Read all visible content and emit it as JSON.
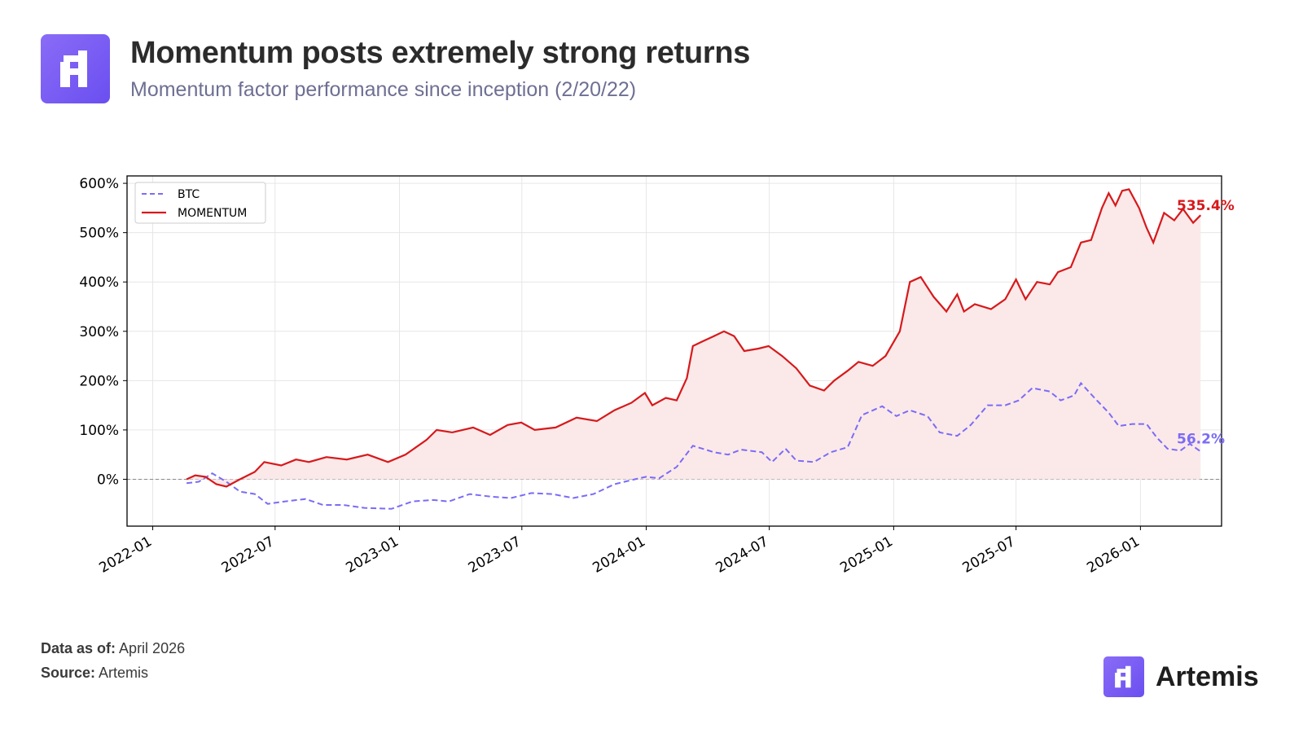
{
  "header": {
    "title": "Momentum posts extremely strong returns",
    "subtitle": "Momentum factor performance since inception (2/20/22)"
  },
  "footer": {
    "data_as_of_label": "Data as of:",
    "data_as_of_value": "April 2026",
    "source_label": "Source:",
    "source_value": "Artemis",
    "brand": "Artemis"
  },
  "colors": {
    "momentum": "#d7191c",
    "btc": "#7b6cf6",
    "fill": "#fbe9e9",
    "brand": "#7057f2"
  },
  "chart_data": {
    "type": "line",
    "xlabel": "",
    "ylabel": "",
    "ylim": [
      -95,
      615
    ],
    "xlim": [
      "2021-11-24",
      "2026-05-01"
    ],
    "y_ticks": [
      0,
      100,
      200,
      300,
      400,
      500,
      600
    ],
    "y_tick_labels": [
      "0%",
      "100%",
      "200%",
      "300%",
      "400%",
      "500%",
      "600%"
    ],
    "x_ticks": [
      "2022-01-01",
      "2022-07-01",
      "2023-01-01",
      "2023-07-01",
      "2024-01-01",
      "2024-07-01",
      "2025-01-01",
      "2025-07-01",
      "2026-01-01"
    ],
    "x_tick_labels": [
      "2022-01",
      "2022-07",
      "2023-01",
      "2023-07",
      "2024-01",
      "2024-07",
      "2025-01",
      "2025-07",
      "2026-01"
    ],
    "grid": true,
    "legend_position": "top-left",
    "series": [
      {
        "name": "BTC",
        "style": "dashed",
        "end_label": "56.2%",
        "points": [
          [
            "2022-02-20",
            -8
          ],
          [
            "2022-03-10",
            -5
          ],
          [
            "2022-03-30",
            12
          ],
          [
            "2022-04-20",
            -5
          ],
          [
            "2022-05-10",
            -25
          ],
          [
            "2022-06-01",
            -30
          ],
          [
            "2022-06-20",
            -50
          ],
          [
            "2022-07-15",
            -45
          ],
          [
            "2022-08-15",
            -40
          ],
          [
            "2022-09-10",
            -52
          ],
          [
            "2022-10-10",
            -52
          ],
          [
            "2022-11-10",
            -58
          ],
          [
            "2022-12-20",
            -60
          ],
          [
            "2023-01-20",
            -45
          ],
          [
            "2023-02-20",
            -42
          ],
          [
            "2023-03-15",
            -45
          ],
          [
            "2023-04-15",
            -30
          ],
          [
            "2023-05-15",
            -35
          ],
          [
            "2023-06-15",
            -38
          ],
          [
            "2023-07-15",
            -28
          ],
          [
            "2023-08-15",
            -30
          ],
          [
            "2023-09-15",
            -38
          ],
          [
            "2023-10-15",
            -30
          ],
          [
            "2023-11-15",
            -10
          ],
          [
            "2023-12-15",
            0
          ],
          [
            "2024-01-01",
            5
          ],
          [
            "2024-01-20",
            2
          ],
          [
            "2024-02-15",
            25
          ],
          [
            "2024-03-10",
            68
          ],
          [
            "2024-04-10",
            55
          ],
          [
            "2024-05-01",
            50
          ],
          [
            "2024-05-20",
            60
          ],
          [
            "2024-06-20",
            55
          ],
          [
            "2024-07-05",
            35
          ],
          [
            "2024-07-25",
            62
          ],
          [
            "2024-08-10",
            38
          ],
          [
            "2024-09-05",
            35
          ],
          [
            "2024-09-30",
            55
          ],
          [
            "2024-10-25",
            65
          ],
          [
            "2024-11-15",
            130
          ],
          [
            "2024-12-15",
            148
          ],
          [
            "2025-01-05",
            128
          ],
          [
            "2025-01-25",
            140
          ],
          [
            "2025-02-20",
            128
          ],
          [
            "2025-03-10",
            95
          ],
          [
            "2025-04-05",
            88
          ],
          [
            "2025-04-25",
            110
          ],
          [
            "2025-05-20",
            150
          ],
          [
            "2025-06-15",
            150
          ],
          [
            "2025-07-05",
            160
          ],
          [
            "2025-07-25",
            185
          ],
          [
            "2025-08-20",
            178
          ],
          [
            "2025-09-05",
            160
          ],
          [
            "2025-09-25",
            170
          ],
          [
            "2025-10-05",
            195
          ],
          [
            "2025-10-25",
            165
          ],
          [
            "2025-11-15",
            135
          ],
          [
            "2025-11-30",
            108
          ],
          [
            "2025-12-20",
            112
          ],
          [
            "2026-01-10",
            112
          ],
          [
            "2026-01-25",
            85
          ],
          [
            "2026-02-10",
            62
          ],
          [
            "2026-03-01",
            58
          ],
          [
            "2026-03-15",
            72
          ],
          [
            "2026-03-31",
            56.2
          ]
        ]
      },
      {
        "name": "MOMENTUM",
        "style": "solid",
        "end_label": "535.4%",
        "points": [
          [
            "2022-02-20",
            0
          ],
          [
            "2022-03-05",
            8
          ],
          [
            "2022-03-20",
            5
          ],
          [
            "2022-04-05",
            -10
          ],
          [
            "2022-04-20",
            -15
          ],
          [
            "2022-05-10",
            0
          ],
          [
            "2022-06-01",
            15
          ],
          [
            "2022-06-15",
            35
          ],
          [
            "2022-07-10",
            28
          ],
          [
            "2022-08-01",
            40
          ],
          [
            "2022-08-20",
            35
          ],
          [
            "2022-09-15",
            45
          ],
          [
            "2022-10-15",
            40
          ],
          [
            "2022-11-15",
            50
          ],
          [
            "2022-12-15",
            35
          ],
          [
            "2023-01-10",
            50
          ],
          [
            "2023-02-10",
            80
          ],
          [
            "2023-02-25",
            100
          ],
          [
            "2023-03-20",
            95
          ],
          [
            "2023-04-20",
            105
          ],
          [
            "2023-05-15",
            90
          ],
          [
            "2023-06-10",
            110
          ],
          [
            "2023-06-30",
            115
          ],
          [
            "2023-07-20",
            100
          ],
          [
            "2023-08-20",
            105
          ],
          [
            "2023-09-20",
            125
          ],
          [
            "2023-10-20",
            118
          ],
          [
            "2023-11-15",
            140
          ],
          [
            "2023-12-10",
            155
          ],
          [
            "2023-12-30",
            175
          ],
          [
            "2024-01-10",
            150
          ],
          [
            "2024-01-30",
            165
          ],
          [
            "2024-02-15",
            160
          ],
          [
            "2024-03-01",
            205
          ],
          [
            "2024-03-10",
            270
          ],
          [
            "2024-03-25",
            280
          ],
          [
            "2024-04-10",
            290
          ],
          [
            "2024-04-25",
            300
          ],
          [
            "2024-05-10",
            290
          ],
          [
            "2024-05-25",
            260
          ],
          [
            "2024-06-15",
            265
          ],
          [
            "2024-06-30",
            270
          ],
          [
            "2024-07-20",
            250
          ],
          [
            "2024-08-10",
            225
          ],
          [
            "2024-08-30",
            190
          ],
          [
            "2024-09-20",
            180
          ],
          [
            "2024-10-05",
            200
          ],
          [
            "2024-10-25",
            220
          ],
          [
            "2024-11-10",
            238
          ],
          [
            "2024-12-01",
            230
          ],
          [
            "2024-12-20",
            250
          ],
          [
            "2025-01-10",
            300
          ],
          [
            "2025-01-25",
            400
          ],
          [
            "2025-02-10",
            410
          ],
          [
            "2025-03-01",
            370
          ],
          [
            "2025-03-20",
            340
          ],
          [
            "2025-04-05",
            375
          ],
          [
            "2025-04-15",
            340
          ],
          [
            "2025-05-01",
            355
          ],
          [
            "2025-05-25",
            345
          ],
          [
            "2025-06-15",
            365
          ],
          [
            "2025-07-01",
            405
          ],
          [
            "2025-07-15",
            365
          ],
          [
            "2025-08-01",
            400
          ],
          [
            "2025-08-20",
            395
          ],
          [
            "2025-09-01",
            420
          ],
          [
            "2025-09-20",
            430
          ],
          [
            "2025-10-05",
            480
          ],
          [
            "2025-10-20",
            485
          ],
          [
            "2025-11-05",
            550
          ],
          [
            "2025-11-15",
            580
          ],
          [
            "2025-11-25",
            555
          ],
          [
            "2025-12-05",
            585
          ],
          [
            "2025-12-15",
            588
          ],
          [
            "2025-12-30",
            550
          ],
          [
            "2026-01-10",
            510
          ],
          [
            "2026-01-20",
            480
          ],
          [
            "2026-02-05",
            540
          ],
          [
            "2026-02-20",
            525
          ],
          [
            "2026-03-05",
            548
          ],
          [
            "2026-03-20",
            520
          ],
          [
            "2026-03-31",
            535.4
          ]
        ]
      }
    ]
  }
}
